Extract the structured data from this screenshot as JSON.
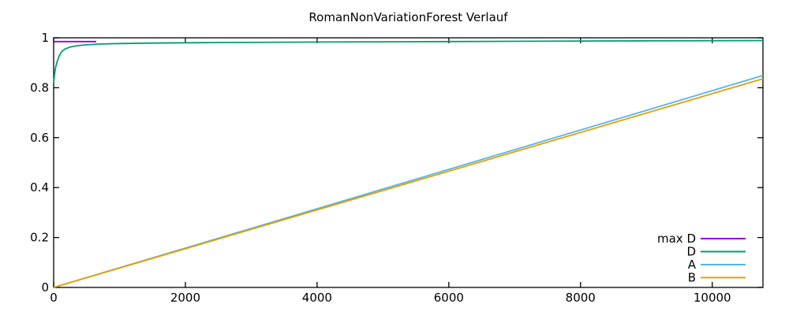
{
  "chart_data": {
    "type": "line",
    "title": "RomanNonVariationForest Verlauf",
    "xlabel": "",
    "ylabel": "",
    "xlim": [
      0,
      10770
    ],
    "ylim": [
      0,
      1
    ],
    "xticks": [
      0,
      2000,
      4000,
      6000,
      8000,
      10000
    ],
    "yticks": [
      0,
      0.2,
      0.4,
      0.6,
      0.8,
      1
    ],
    "xtick_labels": [
      "0",
      "2000",
      "4000",
      "6000",
      "8000",
      "10000"
    ],
    "ytick_labels": [
      "0",
      "0.2",
      "0.4",
      "0.6",
      "0.8",
      "1"
    ],
    "grid": false,
    "legend_position": "bottom-right-inside",
    "series": [
      {
        "name": "max D",
        "color": "#9400d3",
        "points": [
          [
            0,
            0.985
          ],
          [
            647,
            0.985
          ]
        ]
      },
      {
        "name": "D",
        "color": "#009e73",
        "points": [
          [
            0,
            0.82
          ],
          [
            15,
            0.858
          ],
          [
            30,
            0.882
          ],
          [
            50,
            0.902
          ],
          [
            80,
            0.925
          ],
          [
            120,
            0.944
          ],
          [
            170,
            0.955
          ],
          [
            250,
            0.963
          ],
          [
            350,
            0.968
          ],
          [
            500,
            0.972
          ],
          [
            700,
            0.975
          ],
          [
            1000,
            0.977
          ],
          [
            1500,
            0.979
          ],
          [
            2500,
            0.981
          ],
          [
            4000,
            0.983
          ],
          [
            6000,
            0.985
          ],
          [
            8000,
            0.987
          ],
          [
            10770,
            0.989
          ]
        ]
      },
      {
        "name": "A",
        "color": "#56b4e9",
        "points": [
          [
            0,
            0
          ],
          [
            10770,
            0.849
          ]
        ]
      },
      {
        "name": "B",
        "color": "#e69f00",
        "points": [
          [
            0,
            0
          ],
          [
            10770,
            0.836
          ]
        ]
      }
    ]
  },
  "colors": {
    "background": "#ffffff",
    "border": "#000000",
    "text": "#000000"
  }
}
